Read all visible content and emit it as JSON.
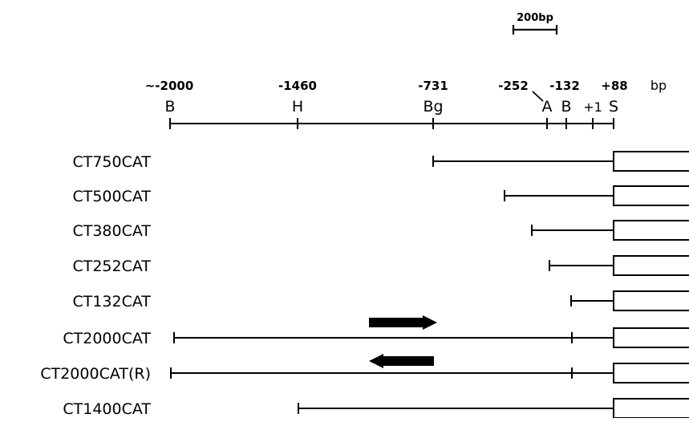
{
  "scale_bar": {
    "label": "200bp"
  },
  "map": {
    "unit": "bp",
    "positions": [
      {
        "id": "pos-minus2000",
        "label": "~-2000",
        "site": "B"
      },
      {
        "id": "pos-minus1460",
        "label": "-1460",
        "site": "H"
      },
      {
        "id": "pos-minus731",
        "label": "-731",
        "site": "Bg"
      },
      {
        "id": "pos-minus252",
        "label": "-252",
        "site": "A"
      },
      {
        "id": "pos-minus132",
        "label": "-132",
        "site": "B"
      },
      {
        "id": "pos-plus1",
        "label": "",
        "site": "+1"
      },
      {
        "id": "pos-plus88",
        "label": "+88",
        "site": "S"
      }
    ]
  },
  "constructs": [
    {
      "name": "CT750CAT",
      "start": -731,
      "end": 88,
      "arrow": null
    },
    {
      "name": "CT500CAT",
      "start": -480,
      "end": 88,
      "arrow": null
    },
    {
      "name": "CT380CAT",
      "start": -360,
      "end": 88,
      "arrow": null
    },
    {
      "name": "CT252CAT",
      "start": -252,
      "end": 88,
      "arrow": null
    },
    {
      "name": "CT132CAT",
      "start": -132,
      "end": 88,
      "arrow": null
    },
    {
      "name": "CT2000CAT",
      "start": -2000,
      "end": 88,
      "internal_tick": -132,
      "arrow": "forward"
    },
    {
      "name": "CT2000CAT(R)",
      "start": -2000,
      "end": 88,
      "internal_tick": -132,
      "arrow": "reverse"
    },
    {
      "name": "CT1400CAT",
      "start": -1460,
      "end": 88,
      "arrow": null
    }
  ]
}
